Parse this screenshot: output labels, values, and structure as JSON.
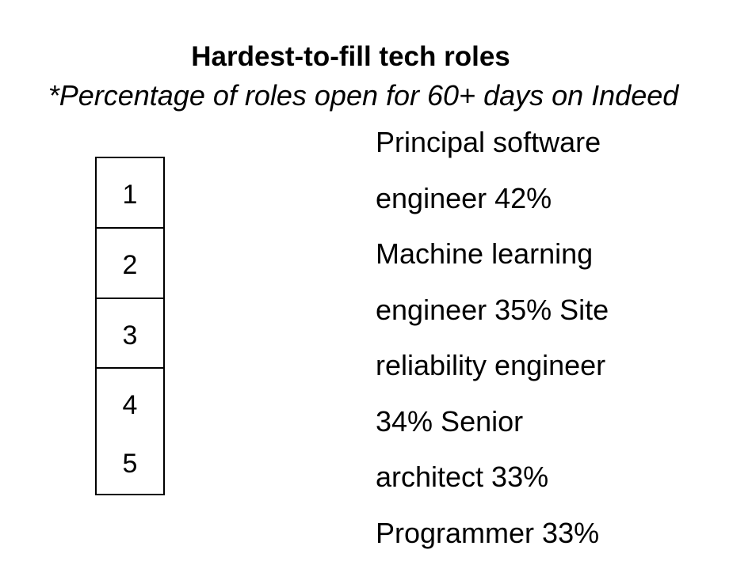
{
  "chart_data": {
    "type": "table",
    "title": "Hardest-to-fill tech roles",
    "subtitle": "*Percentage of roles open for 60+ days on Indeed",
    "ranks": [
      "1",
      "2",
      "3",
      "4",
      "5"
    ],
    "rows": [
      {
        "rank": 1,
        "role": "Principal software engineer",
        "value": 42
      },
      {
        "rank": 2,
        "role": "Machine learning engineer",
        "value": 35
      },
      {
        "rank": 3,
        "role": "Site reliability engineer",
        "value": 34
      },
      {
        "rank": 4,
        "role": "Senior architect",
        "value": 33
      },
      {
        "rank": 5,
        "role": "Programmer",
        "value": 33
      }
    ],
    "unit": "%",
    "text_lines": [
      "Principal software",
      "engineer 42%",
      "Machine learning",
      "engineer 35% Site",
      "reliability engineer",
      "34% Senior",
      "architect 33%",
      "Programmer 33%"
    ]
  }
}
